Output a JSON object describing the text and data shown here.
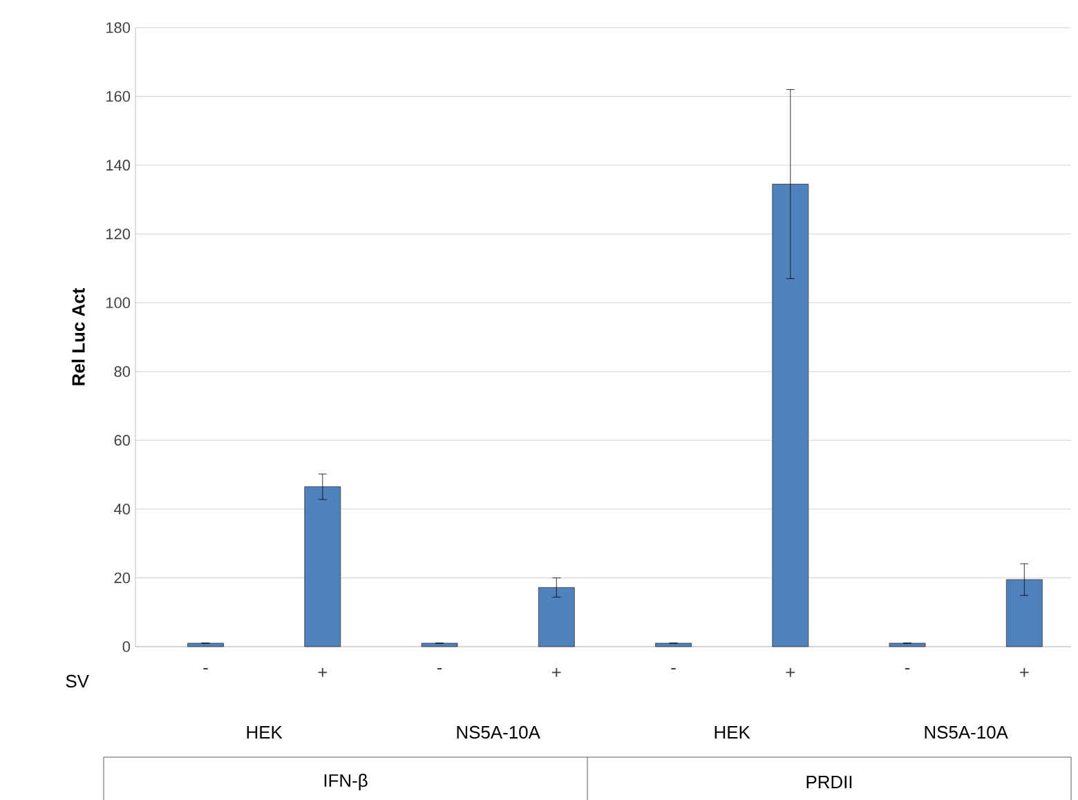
{
  "chart_data": {
    "type": "bar",
    "ylabel": "Rel Luc Act",
    "categories": [
      "-",
      "+",
      "-",
      "+",
      "-",
      "+",
      "-",
      "+"
    ],
    "values": [
      1,
      46.5,
      1,
      17.2,
      1,
      134.5,
      1,
      19.5
    ],
    "errors": [
      null,
      3.7,
      null,
      2.8,
      null,
      27.5,
      null,
      4.6
    ],
    "color": "#4f81bd",
    "ylim": [
      0,
      180
    ],
    "yticks": [
      0,
      20,
      40,
      60,
      80,
      100,
      120,
      140,
      160,
      180
    ],
    "grid": "y",
    "annotations": [
      "SV",
      "HEK",
      "NS5A-10A",
      "HEK",
      "NS5A-10A",
      "IFN-β",
      "PRDII"
    ]
  }
}
